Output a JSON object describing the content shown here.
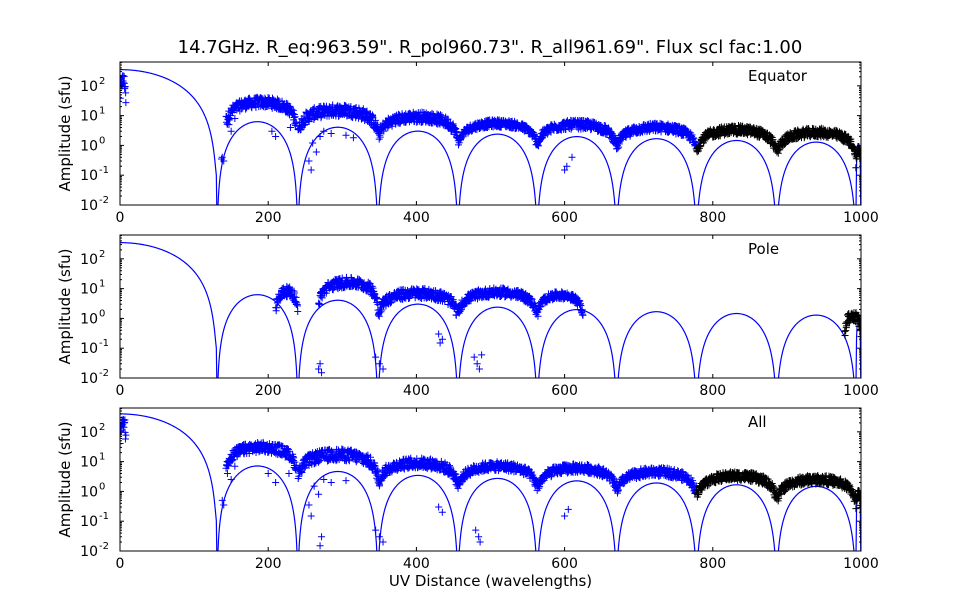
{
  "title": "14.7GHz. R_eq:963.59\". R_pol960.73\". R_all961.69\". Flux scl fac:1.00",
  "colors": {
    "model": "#0000ff",
    "data_blue": "#0000ff",
    "data_black": "#000000"
  },
  "chart_data": [
    {
      "type": "scatter",
      "panel": "Equator",
      "annotation": "Equator",
      "ylabel": "Amplitude (sfu)",
      "xlim": [
        0,
        1000
      ],
      "ylim_log10": [
        -2,
        2.8
      ],
      "yscale": "log",
      "xticks": [
        "0",
        "200",
        "400",
        "600",
        "800",
        "1000"
      ],
      "yticks": [
        "10",
        "10",
        "10",
        "10",
        "10"
      ],
      "ytick_exponents": [
        "-2",
        "-1",
        "0",
        "1",
        "2"
      ],
      "model_peak": 350,
      "model_nulls": [
        131,
        240,
        348,
        456,
        563,
        670,
        778,
        886,
        993
      ],
      "data_bands": [
        {
          "x0": 0,
          "x1": 8,
          "y": 150,
          "spread": 0.5,
          "color": "blue"
        },
        {
          "x0": 143,
          "x1": 238,
          "y": 28,
          "spread": 0.35,
          "color": "blue"
        },
        {
          "x0": 240,
          "x1": 348,
          "y": 15,
          "spread": 0.4,
          "color": "blue"
        },
        {
          "x0": 348,
          "x1": 456,
          "y": 9,
          "spread": 0.35,
          "color": "blue"
        },
        {
          "x0": 456,
          "x1": 563,
          "y": 5.5,
          "spread": 0.25,
          "color": "blue"
        },
        {
          "x0": 563,
          "x1": 670,
          "y": 5,
          "spread": 0.3,
          "color": "blue"
        },
        {
          "x0": 670,
          "x1": 778,
          "y": 4,
          "spread": 0.3,
          "color": "blue"
        },
        {
          "x0": 778,
          "x1": 886,
          "y": 3.3,
          "spread": 0.3,
          "color": "black"
        },
        {
          "x0": 886,
          "x1": 993,
          "y": 2.7,
          "spread": 0.3,
          "color": "black"
        },
        {
          "x0": 993,
          "x1": 1000,
          "y": 0.7,
          "spread": 0.3,
          "color": "black"
        }
      ],
      "outliers": [
        [
          138,
          0.4
        ],
        [
          140,
          0.3
        ],
        [
          137,
          0.35
        ],
        [
          147,
          5
        ],
        [
          150,
          3
        ],
        [
          155,
          8
        ],
        [
          205,
          3
        ],
        [
          210,
          2
        ],
        [
          230,
          4
        ],
        [
          255,
          0.3
        ],
        [
          258,
          0.15
        ],
        [
          260,
          1.2
        ],
        [
          265,
          0.6
        ],
        [
          270,
          2
        ],
        [
          275,
          3
        ],
        [
          285,
          2.5
        ],
        [
          305,
          2.2
        ],
        [
          315,
          1.8
        ],
        [
          600,
          0.15
        ],
        [
          603,
          0.2
        ],
        [
          610,
          0.4
        ]
      ]
    },
    {
      "type": "scatter",
      "panel": "Pole",
      "annotation": "Pole",
      "ylabel": "Amplitude (sfu)",
      "xlim": [
        0,
        1000
      ],
      "ylim_log10": [
        -2,
        2.8
      ],
      "yscale": "log",
      "xticks": [
        "0",
        "200",
        "400",
        "600",
        "800",
        "1000"
      ],
      "yticks": [
        "10",
        "10",
        "10",
        "10",
        "10"
      ],
      "ytick_exponents": [
        "-2",
        "-1",
        "0",
        "1",
        "2"
      ],
      "model_peak": 350,
      "model_nulls": [
        131,
        240,
        348,
        456,
        563,
        670,
        778,
        886,
        993
      ],
      "data_bands": [
        {
          "x0": 210,
          "x1": 240,
          "y": 8,
          "spread": 0.35,
          "color": "blue"
        },
        {
          "x0": 268,
          "x1": 348,
          "y": 16,
          "spread": 0.35,
          "color": "blue"
        },
        {
          "x0": 348,
          "x1": 456,
          "y": 7,
          "spread": 0.35,
          "color": "blue"
        },
        {
          "x0": 456,
          "x1": 563,
          "y": 7.5,
          "spread": 0.3,
          "color": "blue"
        },
        {
          "x0": 563,
          "x1": 625,
          "y": 6,
          "spread": 0.25,
          "color": "blue"
        },
        {
          "x0": 978,
          "x1": 1000,
          "y": 1.2,
          "spread": 0.35,
          "color": "black"
        }
      ],
      "outliers": [
        [
          270,
          0.03
        ],
        [
          272,
          0.015
        ],
        [
          268,
          0.02
        ],
        [
          345,
          0.05
        ],
        [
          350,
          0.03
        ],
        [
          355,
          0.02
        ],
        [
          430,
          0.3
        ],
        [
          435,
          0.2
        ],
        [
          432,
          0.15
        ],
        [
          478,
          0.05
        ],
        [
          482,
          0.03
        ],
        [
          485,
          0.02
        ],
        [
          488,
          0.06
        ]
      ]
    },
    {
      "type": "scatter",
      "panel": "All",
      "annotation": "All",
      "ylabel": "Amplitude (sfu)",
      "xlabel": "UV Distance (wavelengths)",
      "xlim": [
        0,
        1000
      ],
      "ylim_log10": [
        -2,
        2.8
      ],
      "yscale": "log",
      "xticks": [
        "0",
        "200",
        "400",
        "600",
        "800",
        "1000"
      ],
      "yticks": [
        "10",
        "10",
        "10",
        "10",
        "10"
      ],
      "ytick_exponents": [
        "-2",
        "-1",
        "0",
        "1",
        "2"
      ],
      "model_peak": 400,
      "model_nulls": [
        131,
        240,
        348,
        456,
        563,
        670,
        778,
        886,
        993
      ],
      "data_bands": [
        {
          "x0": 0,
          "x1": 8,
          "y": 200,
          "spread": 0.5,
          "color": "blue"
        },
        {
          "x0": 143,
          "x1": 238,
          "y": 30,
          "spread": 0.35,
          "color": "blue"
        },
        {
          "x0": 240,
          "x1": 348,
          "y": 17,
          "spread": 0.4,
          "color": "blue"
        },
        {
          "x0": 348,
          "x1": 456,
          "y": 9,
          "spread": 0.35,
          "color": "blue"
        },
        {
          "x0": 456,
          "x1": 563,
          "y": 7,
          "spread": 0.3,
          "color": "blue"
        },
        {
          "x0": 563,
          "x1": 670,
          "y": 6,
          "spread": 0.3,
          "color": "blue"
        },
        {
          "x0": 670,
          "x1": 778,
          "y": 4.5,
          "spread": 0.3,
          "color": "blue"
        },
        {
          "x0": 778,
          "x1": 886,
          "y": 3.3,
          "spread": 0.3,
          "color": "black"
        },
        {
          "x0": 886,
          "x1": 993,
          "y": 2.5,
          "spread": 0.3,
          "color": "black"
        },
        {
          "x0": 993,
          "x1": 1000,
          "y": 0.8,
          "spread": 0.3,
          "color": "black"
        }
      ],
      "outliers": [
        [
          138,
          0.5
        ],
        [
          140,
          0.35
        ],
        [
          145,
          4
        ],
        [
          150,
          2.5
        ],
        [
          155,
          7
        ],
        [
          200,
          4
        ],
        [
          210,
          2
        ],
        [
          228,
          4
        ],
        [
          255,
          0.35
        ],
        [
          258,
          0.15
        ],
        [
          262,
          1.5
        ],
        [
          268,
          0.8
        ],
        [
          272,
          0.03
        ],
        [
          270,
          0.015
        ],
        [
          275,
          2.5
        ],
        [
          285,
          2
        ],
        [
          305,
          2.3
        ],
        [
          345,
          0.05
        ],
        [
          350,
          0.03
        ],
        [
          355,
          0.02
        ],
        [
          430,
          0.3
        ],
        [
          435,
          0.2
        ],
        [
          480,
          0.05
        ],
        [
          484,
          0.03
        ],
        [
          486,
          0.02
        ],
        [
          600,
          0.15
        ],
        [
          605,
          0.25
        ]
      ]
    }
  ]
}
